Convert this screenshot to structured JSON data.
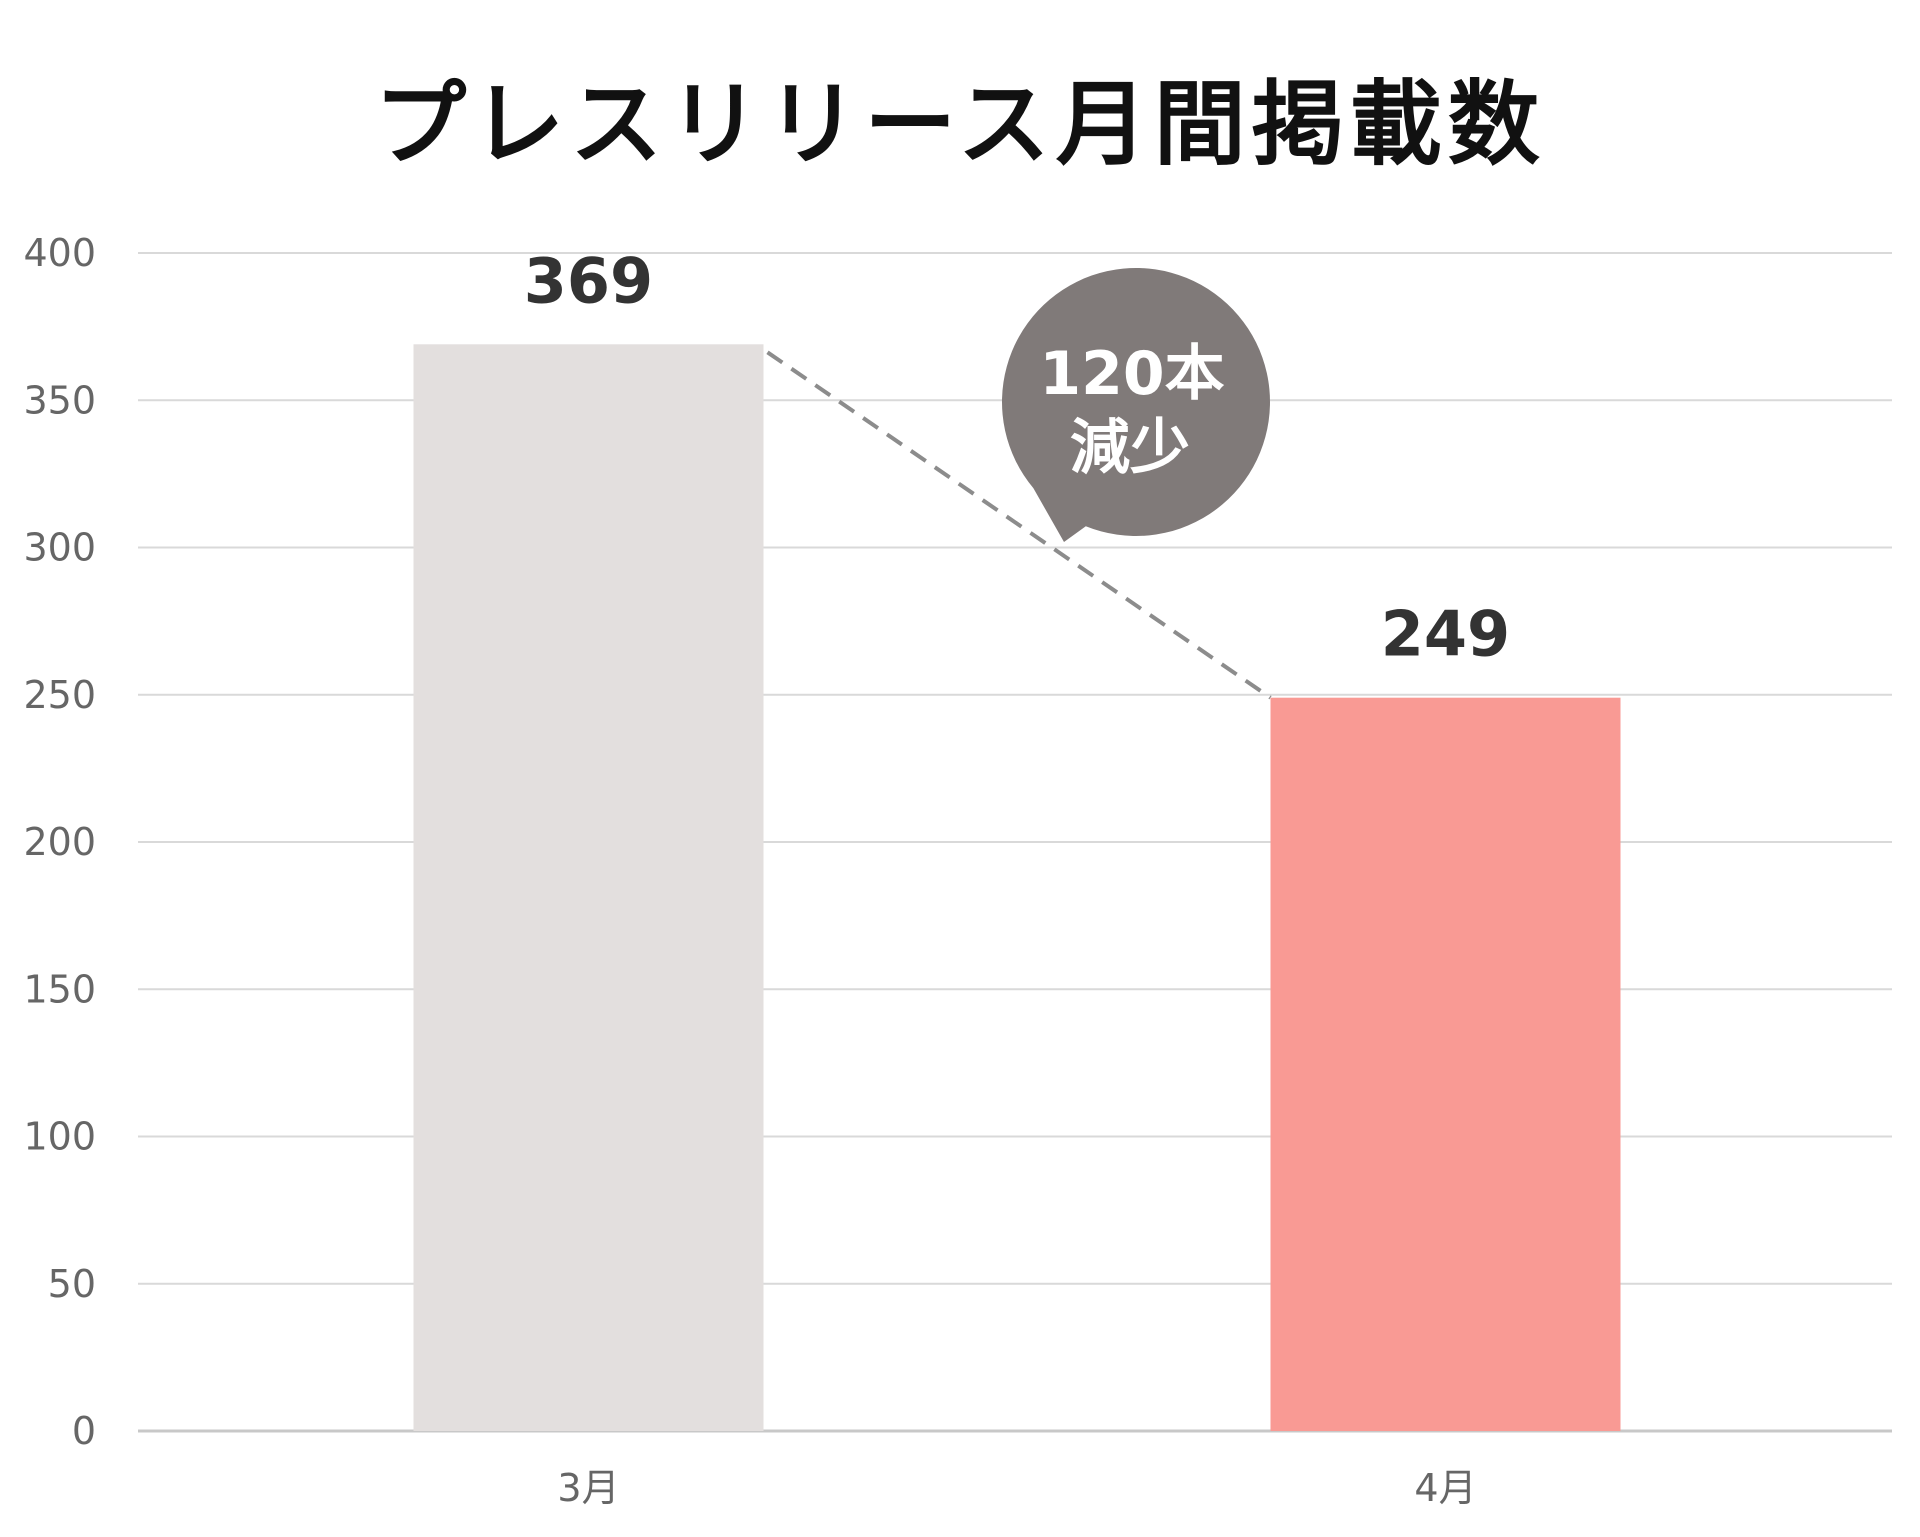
{
  "chart_data": {
    "type": "bar",
    "title": "プレスリリース月間掲載数",
    "categories": [
      "3月",
      "4月"
    ],
    "values": [
      369,
      249
    ],
    "data_labels": [
      "369",
      "249"
    ],
    "ylim": [
      0,
      400
    ],
    "yticks": [
      0,
      50,
      100,
      150,
      200,
      250,
      300,
      350,
      400
    ],
    "grid": true,
    "legend": "none",
    "colors": [
      "#e3dfde",
      "#f99a94"
    ],
    "annotation": {
      "line1": "120本",
      "line2": "減少",
      "color": "#807a79"
    }
  }
}
